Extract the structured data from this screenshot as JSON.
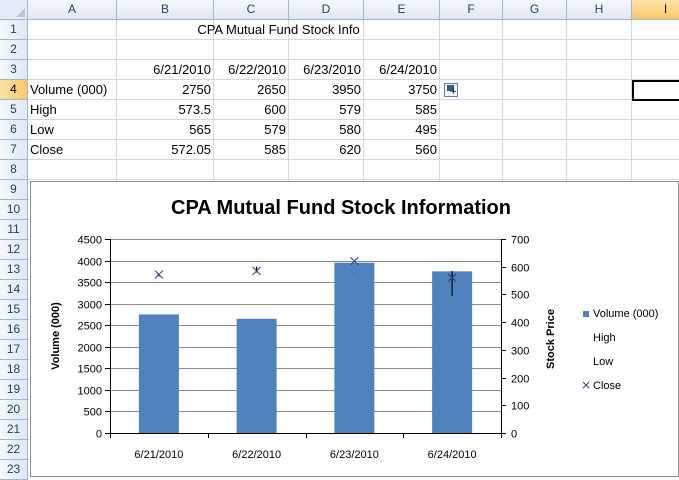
{
  "columns": [
    "A",
    "B",
    "C",
    "D",
    "E",
    "F",
    "G",
    "H",
    "I"
  ],
  "rows": [
    "1",
    "2",
    "3",
    "4",
    "5",
    "6",
    "7",
    "8",
    "9",
    "10",
    "11",
    "12",
    "13",
    "14",
    "15",
    "16",
    "17",
    "18",
    "19",
    "20",
    "21",
    "22",
    "23"
  ],
  "selected_cell": {
    "column": "I",
    "row": "4"
  },
  "cells": {
    "title": "CPA Mutual Fund Stock Info",
    "dates": [
      "6/21/2010",
      "6/22/2010",
      "6/23/2010",
      "6/24/2010"
    ],
    "table": [
      {
        "label": "Volume (000)",
        "values": [
          "2750",
          "2650",
          "3950",
          "3750"
        ]
      },
      {
        "label": "High",
        "values": [
          "573.5",
          "600",
          "579",
          "585"
        ]
      },
      {
        "label": "Low",
        "values": [
          "565",
          "579",
          "580",
          "495"
        ]
      },
      {
        "label": "Close",
        "values": [
          "572.05",
          "585",
          "620",
          "560"
        ]
      }
    ]
  },
  "icons": {
    "paste_options": "paste-options-icon"
  },
  "chart_data": {
    "type": "bar",
    "title": "CPA Mutual Fund Stock Information",
    "categories": [
      "6/21/2010",
      "6/22/2010",
      "6/23/2010",
      "6/24/2010"
    ],
    "series": [
      {
        "name": "Volume (000)",
        "axis": "left",
        "mark": "bar",
        "values": [
          2750,
          2650,
          3950,
          3750
        ]
      },
      {
        "name": "High",
        "axis": "right",
        "mark": "hi-lo",
        "values": [
          573.5,
          600,
          579,
          585
        ]
      },
      {
        "name": "Low",
        "axis": "right",
        "mark": "hi-lo",
        "values": [
          565,
          579,
          580,
          495
        ]
      },
      {
        "name": "Close",
        "axis": "right",
        "mark": "x",
        "values": [
          572.05,
          585,
          620,
          560
        ]
      }
    ],
    "ylabel": "Volume (000)",
    "y2label": "Stock Price",
    "ylim": [
      0,
      4500
    ],
    "y2lim": [
      0,
      700
    ],
    "yticks": [
      "0",
      "500",
      "1000",
      "1500",
      "2000",
      "2500",
      "3000",
      "3500",
      "4000",
      "4500"
    ],
    "y2ticks": [
      "0",
      "100",
      "200",
      "300",
      "400",
      "500",
      "600",
      "700"
    ],
    "grid": true,
    "legend": "right",
    "colors": {
      "bar": "#4f81bd",
      "marker": "#3d3d8f",
      "hilo": "#000000",
      "grid": "#8c8c8c"
    }
  }
}
